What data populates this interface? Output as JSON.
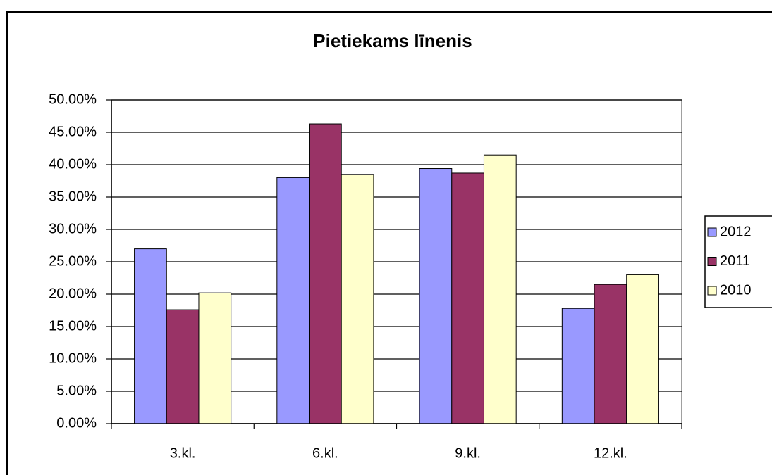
{
  "chart_data": {
    "type": "bar",
    "title": "Pietiekams līnenis",
    "categories": [
      "3.kl.",
      "6.kl.",
      "9.kl.",
      "12.kl."
    ],
    "series": [
      {
        "name": "2012",
        "color": "#9999ff",
        "values": [
          27.0,
          38.0,
          39.4,
          17.8
        ]
      },
      {
        "name": "2011",
        "color": "#993366",
        "values": [
          17.6,
          46.3,
          38.7,
          21.5
        ]
      },
      {
        "name": "2010",
        "color": "#ffffcc",
        "values": [
          20.2,
          38.5,
          41.5,
          23.0
        ]
      }
    ],
    "ylim": [
      0,
      50
    ],
    "yticks": [
      {
        "value": 0,
        "label": "0.00%"
      },
      {
        "value": 5,
        "label": "5.00%"
      },
      {
        "value": 10,
        "label": "10.00%"
      },
      {
        "value": 15,
        "label": "15.00%"
      },
      {
        "value": 20,
        "label": "20.00%"
      },
      {
        "value": 25,
        "label": "25.00%"
      },
      {
        "value": 30,
        "label": "30.00%"
      },
      {
        "value": 35,
        "label": "35.00%"
      },
      {
        "value": 40,
        "label": "40.00%"
      },
      {
        "value": 45,
        "label": "45.00%"
      },
      {
        "value": 50,
        "label": "50.00%"
      }
    ],
    "grid": true,
    "legend": "right"
  }
}
